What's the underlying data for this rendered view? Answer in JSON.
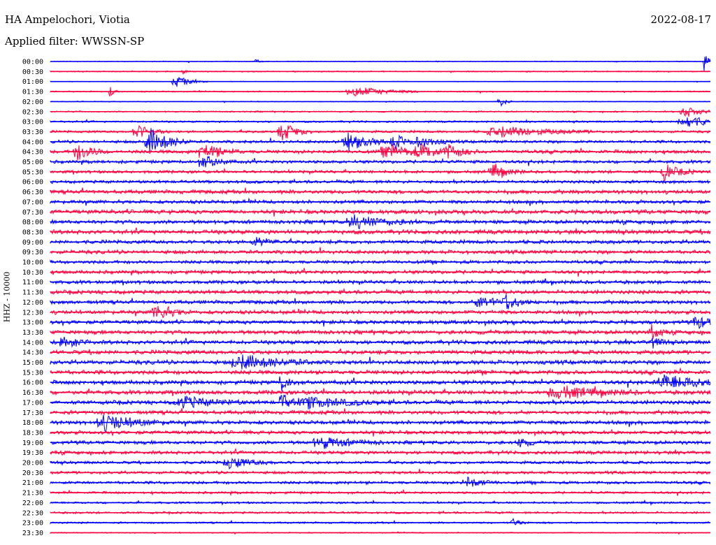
{
  "header": {
    "station": "HA Ampelochori, Viotia",
    "date": "2022-08-17",
    "filter_text": "Applied filter: WWSSN-SP"
  },
  "chart_data": {
    "type": "line",
    "title": "HA Ampelochori, Viotia",
    "date": "2022-08-17",
    "ylabel": "HHZ - 10000",
    "rows": [
      "00:00",
      "00:30",
      "01:00",
      "01:30",
      "02:00",
      "02:30",
      "03:00",
      "03:30",
      "04:00",
      "04:30",
      "05:00",
      "05:30",
      "06:00",
      "06:30",
      "07:00",
      "07:30",
      "08:00",
      "08:30",
      "09:00",
      "09:30",
      "10:00",
      "10:30",
      "11:00",
      "11:30",
      "12:00",
      "12:30",
      "13:00",
      "13:30",
      "14:00",
      "14:30",
      "15:00",
      "15:30",
      "16:00",
      "16:30",
      "17:00",
      "17:30",
      "18:00",
      "18:30",
      "19:00",
      "19:30",
      "20:00",
      "20:30",
      "21:00",
      "21:30",
      "22:00",
      "22:30",
      "23:00",
      "23:30"
    ],
    "colors": [
      "#0000ff",
      "#ff0040"
    ],
    "background_noise": [
      0.6,
      0.8,
      0.5,
      0.9,
      0.6,
      1.0,
      1.3,
      1.6,
      2.0,
      2.4,
      2.2,
      2.0,
      2.1,
      2.6,
      2.4,
      2.8,
      2.6,
      2.8,
      2.5,
      2.5,
      2.3,
      2.4,
      2.4,
      2.6,
      2.5,
      2.6,
      2.6,
      2.7,
      2.7,
      2.8,
      2.8,
      2.8,
      2.8,
      2.8,
      2.7,
      2.6,
      2.6,
      2.4,
      2.4,
      2.3,
      2.0,
      1.9,
      2.0,
      1.6,
      1.4,
      1.4,
      1.2,
      0.8
    ],
    "events": [
      {
        "row": 0,
        "t": 0.31,
        "amp": 5,
        "dur": 0.005
      },
      {
        "row": 0,
        "t": 0.99,
        "amp": 30,
        "dur": 0.004
      },
      {
        "row": 1,
        "t": 0.2,
        "amp": 4,
        "dur": 0.004
      },
      {
        "row": 2,
        "t": 0.19,
        "amp": 8,
        "dur": 0.02
      },
      {
        "row": 3,
        "t": 0.09,
        "amp": 7,
        "dur": 0.006
      },
      {
        "row": 3,
        "t": 0.46,
        "amp": 8,
        "dur": 0.04
      },
      {
        "row": 4,
        "t": 0.68,
        "amp": 9,
        "dur": 0.008
      },
      {
        "row": 5,
        "t": 0.96,
        "amp": 9,
        "dur": 0.02
      },
      {
        "row": 6,
        "t": 0.96,
        "amp": 10,
        "dur": 0.03
      },
      {
        "row": 7,
        "t": 0.35,
        "amp": 14,
        "dur": 0.02
      },
      {
        "row": 7,
        "t": 0.13,
        "amp": 10,
        "dur": 0.02
      },
      {
        "row": 7,
        "t": 0.68,
        "amp": 8,
        "dur": 0.06
      },
      {
        "row": 8,
        "t": 0.15,
        "amp": 20,
        "dur": 0.025
      },
      {
        "row": 8,
        "t": 0.45,
        "amp": 12,
        "dur": 0.03
      },
      {
        "row": 8,
        "t": 0.52,
        "amp": 10,
        "dur": 0.02
      },
      {
        "row": 8,
        "t": 0.56,
        "amp": 8,
        "dur": 0.02
      },
      {
        "row": 9,
        "t": 0.04,
        "amp": 12,
        "dur": 0.02
      },
      {
        "row": 9,
        "t": 0.23,
        "amp": 12,
        "dur": 0.025
      },
      {
        "row": 9,
        "t": 0.51,
        "amp": 10,
        "dur": 0.03
      },
      {
        "row": 9,
        "t": 0.56,
        "amp": 8,
        "dur": 0.03
      },
      {
        "row": 9,
        "t": 0.6,
        "amp": 9,
        "dur": 0.02
      },
      {
        "row": 10,
        "t": 0.23,
        "amp": 10,
        "dur": 0.02
      },
      {
        "row": 11,
        "t": 0.67,
        "amp": 10,
        "dur": 0.02
      },
      {
        "row": 11,
        "t": 0.93,
        "amp": 11,
        "dur": 0.02
      },
      {
        "row": 16,
        "t": 0.46,
        "amp": 10,
        "dur": 0.04
      },
      {
        "row": 18,
        "t": 0.31,
        "amp": 6,
        "dur": 0.02
      },
      {
        "row": 24,
        "t": 0.65,
        "amp": 9,
        "dur": 0.02
      },
      {
        "row": 24,
        "t": 0.69,
        "amp": 10,
        "dur": 0.02
      },
      {
        "row": 25,
        "t": 0.16,
        "amp": 12,
        "dur": 0.02
      },
      {
        "row": 26,
        "t": 0.98,
        "amp": 9,
        "dur": 0.02
      },
      {
        "row": 27,
        "t": 0.91,
        "amp": 12,
        "dur": 0.01
      },
      {
        "row": 28,
        "t": 0.02,
        "amp": 8,
        "dur": 0.02
      },
      {
        "row": 28,
        "t": 0.91,
        "amp": 10,
        "dur": 0.01
      },
      {
        "row": 30,
        "t": 0.29,
        "amp": 10,
        "dur": 0.05
      },
      {
        "row": 32,
        "t": 0.35,
        "amp": 12,
        "dur": 0.01
      },
      {
        "row": 32,
        "t": 0.93,
        "amp": 10,
        "dur": 0.05
      },
      {
        "row": 33,
        "t": 0.77,
        "amp": 9,
        "dur": 0.05
      },
      {
        "row": 34,
        "t": 0.2,
        "amp": 8,
        "dur": 0.04
      },
      {
        "row": 34,
        "t": 0.35,
        "amp": 14,
        "dur": 0.01
      },
      {
        "row": 34,
        "t": 0.39,
        "amp": 8,
        "dur": 0.05
      },
      {
        "row": 36,
        "t": 0.08,
        "amp": 12,
        "dur": 0.04
      },
      {
        "row": 38,
        "t": 0.41,
        "amp": 8,
        "dur": 0.04
      },
      {
        "row": 38,
        "t": 0.71,
        "amp": 10,
        "dur": 0.01
      },
      {
        "row": 40,
        "t": 0.27,
        "amp": 8,
        "dur": 0.03
      },
      {
        "row": 42,
        "t": 0.63,
        "amp": 8,
        "dur": 0.02
      },
      {
        "row": 46,
        "t": 0.7,
        "amp": 6,
        "dur": 0.01
      }
    ]
  }
}
